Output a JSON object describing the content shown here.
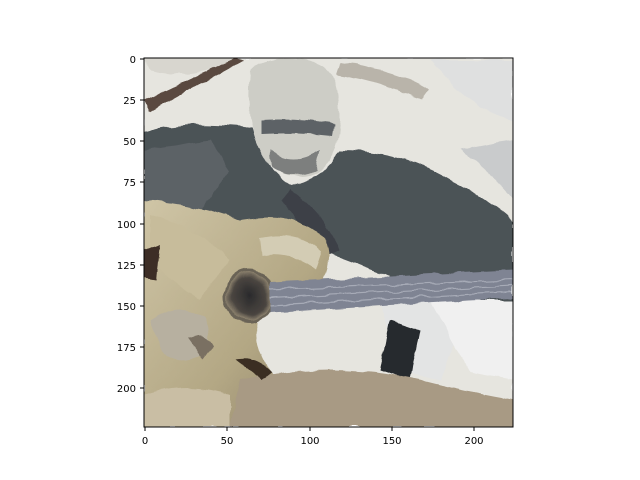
{
  "figure": {
    "image_size": [
      224,
      224
    ],
    "x_ticks": [
      0,
      50,
      100,
      150,
      200
    ],
    "y_ticks": [
      0,
      25,
      50,
      75,
      100,
      125,
      150,
      175,
      200
    ],
    "scene": "stylized photo of a man playing an acoustic guitar"
  },
  "colors": {
    "background": "#ffffff",
    "sky": "#e7e6e0",
    "jacket": "#4d5358",
    "guitar_body": "#b9ad8e",
    "guitar_neck": "#7e8392",
    "skin": "#cfcfc7",
    "shadow": "#2d3034"
  }
}
